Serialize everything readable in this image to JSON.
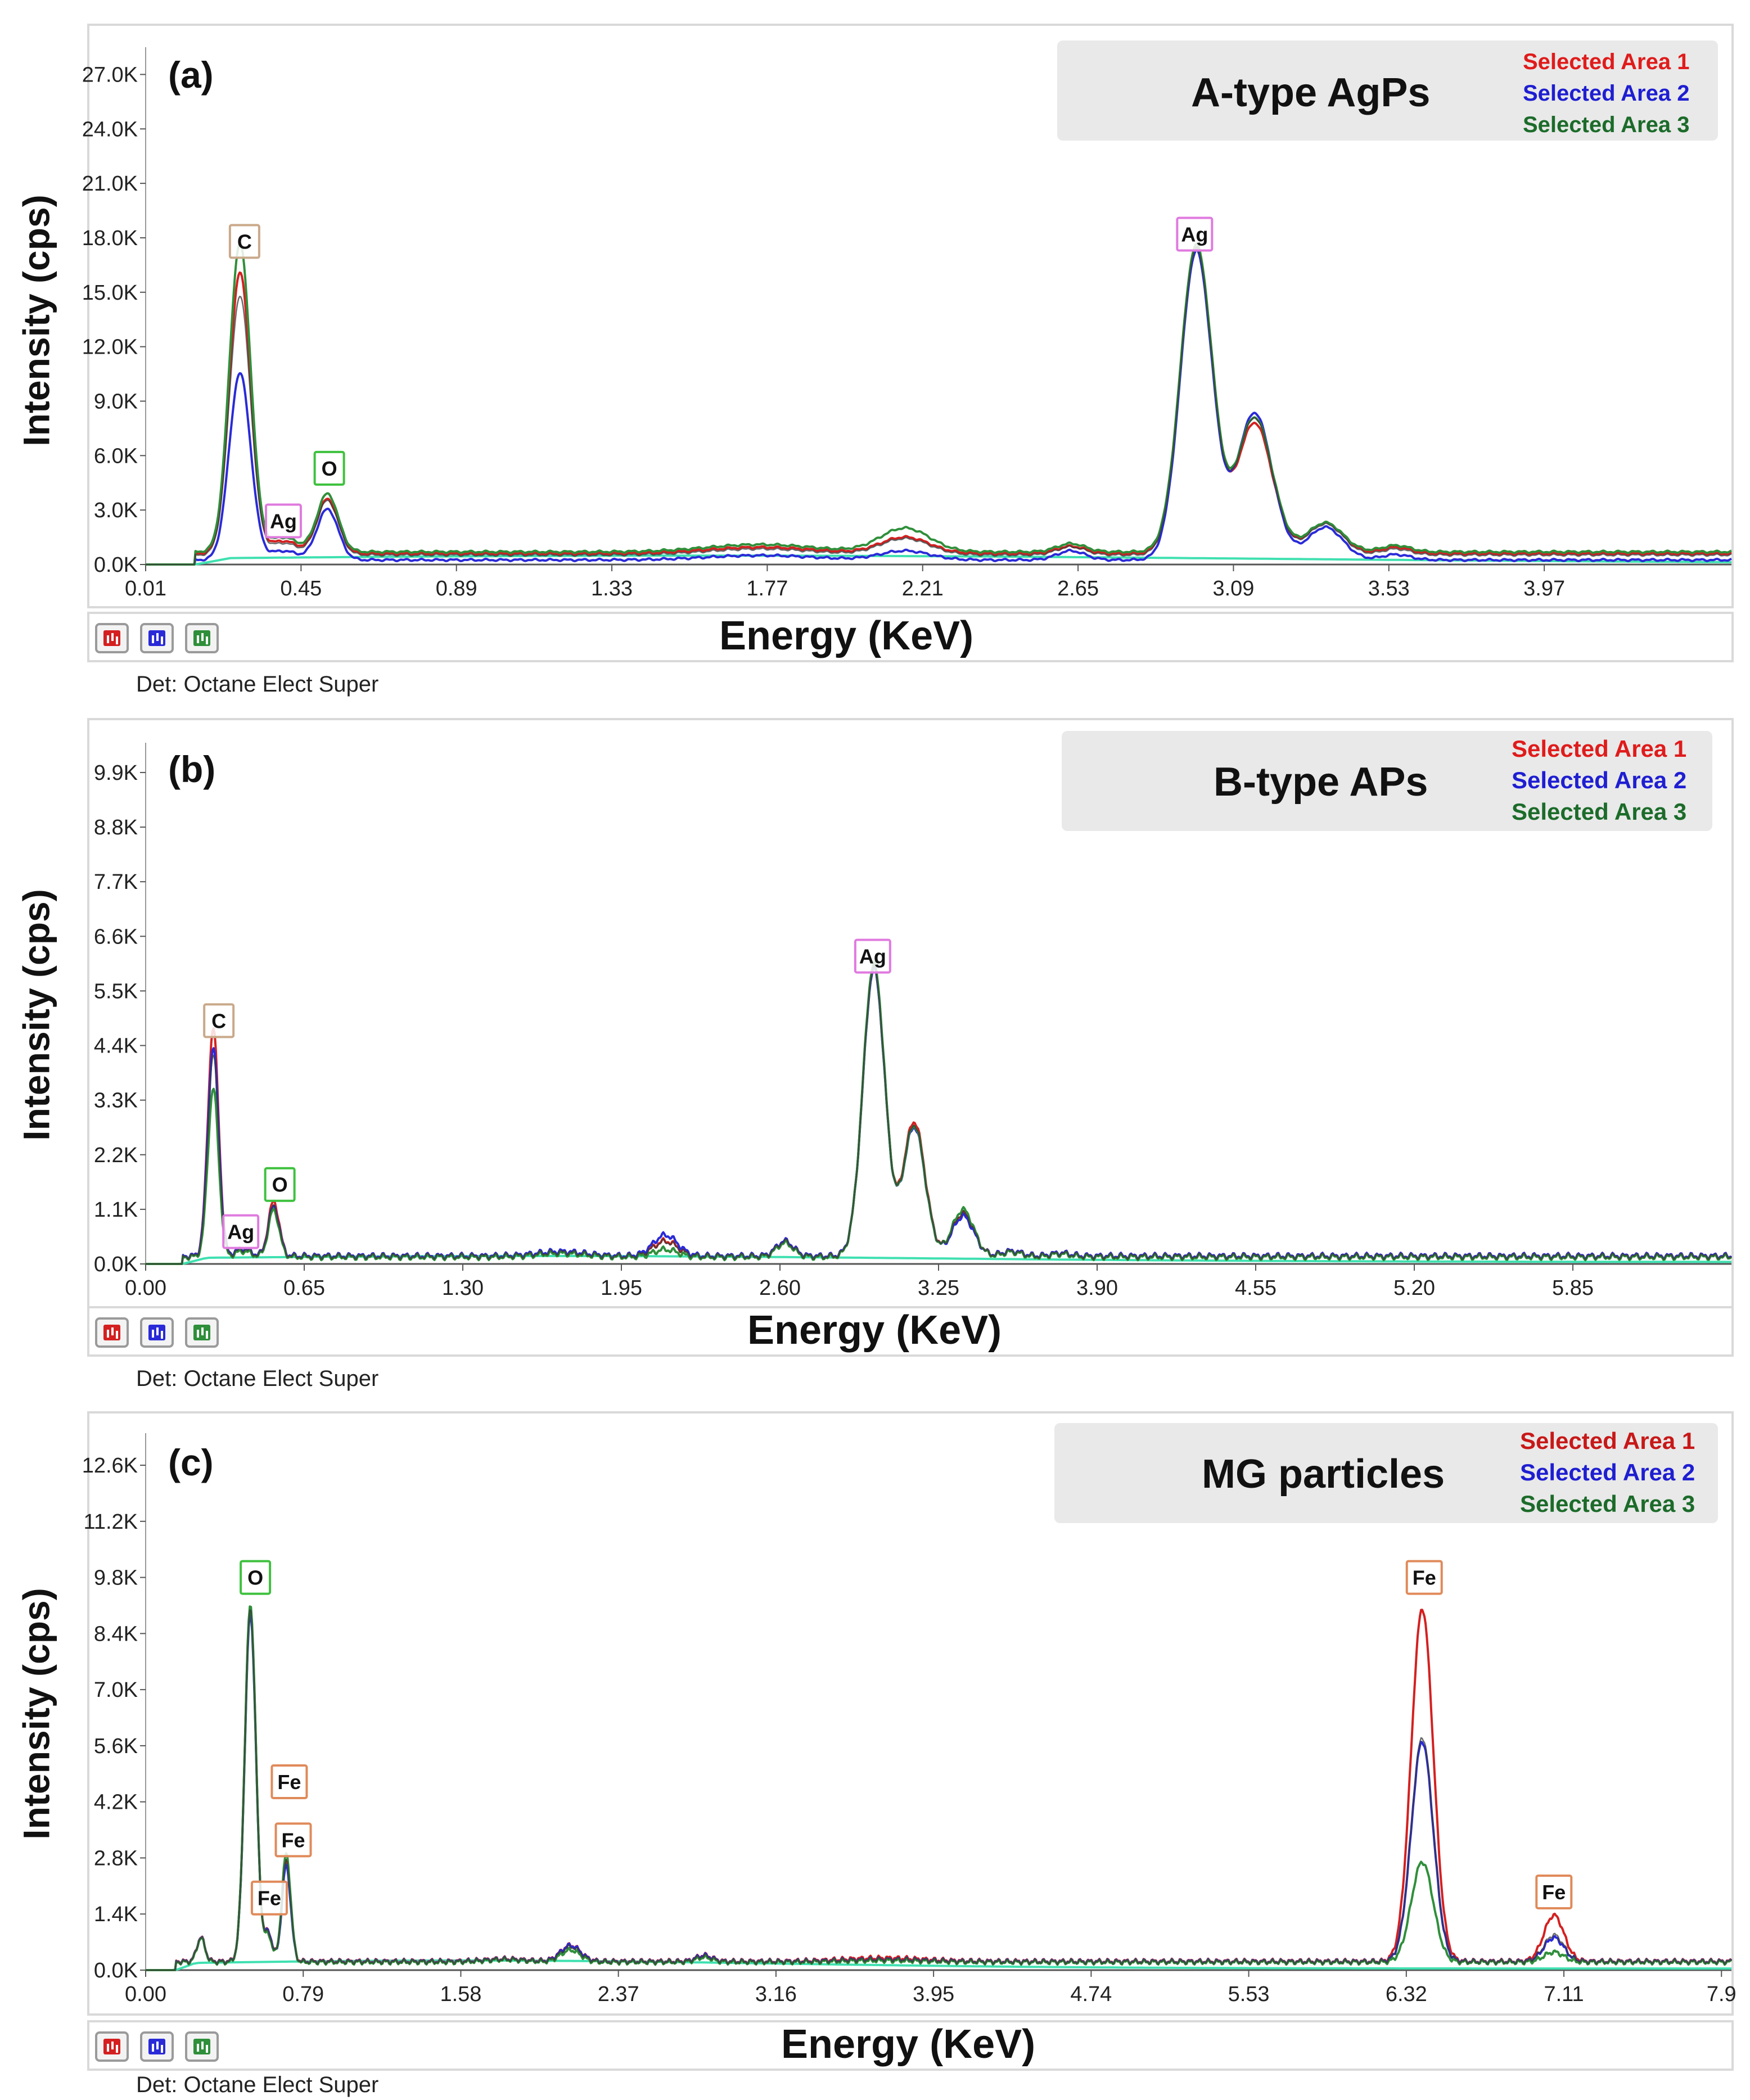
{
  "panels": [
    {
      "id": "a",
      "panel_label": "(a)",
      "legend_title": "A-type AgPs",
      "legend_entries": [
        "Selected Area 1",
        "Selected Area 2",
        "Selected Area 3"
      ],
      "xlabel": "Energy (KeV)",
      "ylabel": "Intensity (cps)",
      "detector": "Det: Octane Elect Super",
      "buttons": [
        "red-spectrum-button",
        "blue-spectrum-button",
        "green-spectrum-button"
      ]
    },
    {
      "id": "b",
      "panel_label": "(b)",
      "legend_title": "B-type APs",
      "legend_entries": [
        "Selected Area 1",
        "Selected Area 2",
        "Selected Area 3"
      ],
      "xlabel": "Energy (KeV)",
      "ylabel": "Intensity (cps)",
      "detector": "Det: Octane Elect Super",
      "buttons": [
        "red-spectrum-button",
        "blue-spectrum-button",
        "green-spectrum-button"
      ]
    },
    {
      "id": "c",
      "panel_label": "(c)",
      "legend_title": "MG particles",
      "legend_entries": [
        "Selected Area 1",
        "Selected Area 2",
        "Selected Area 3"
      ],
      "xlabel": "Energy (KeV)",
      "ylabel": "Intensity (cps)",
      "detector": "Det: Octane Elect Super",
      "buttons": [
        "red-spectrum-button",
        "blue-spectrum-button",
        "green-spectrum-button"
      ]
    }
  ],
  "colors": {
    "series": [
      "#e01b1b",
      "#1e1ed2",
      "#1c6b2a"
    ],
    "series_plot": [
      "#d42020",
      "#2a2ad8",
      "#2f8f3a"
    ],
    "background_trace": "#3fe0b0",
    "overlay_trace": "#3a3a3a",
    "peak_box": {
      "C": "#c9a98a",
      "O": "#3ec13e",
      "Ag": "#e07adf",
      "Fe": "#e08a5a"
    }
  },
  "chart_data": [
    {
      "type": "line",
      "title": "A-type AgPs",
      "xlabel": "Energy (KeV)",
      "ylabel": "Intensity (cps)",
      "xlim": [
        0.01,
        4.5
      ],
      "ylim": [
        0,
        28500
      ],
      "x_ticks": [
        "0.01",
        "0.45",
        "0.89",
        "1.33",
        "1.77",
        "2.21",
        "2.65",
        "3.09",
        "3.53",
        "3.97"
      ],
      "x_tick_values": [
        0.01,
        0.45,
        0.89,
        1.33,
        1.77,
        2.21,
        2.65,
        3.09,
        3.53,
        3.97
      ],
      "y_ticks": [
        "0.0K",
        "3.0K",
        "6.0K",
        "9.0K",
        "12.0K",
        "15.0K",
        "18.0K",
        "21.0K",
        "24.0K",
        "27.0K"
      ],
      "y_tick_values": [
        0,
        3000,
        6000,
        9000,
        12000,
        15000,
        18000,
        21000,
        24000,
        27000
      ],
      "peak_labels": [
        {
          "text": "C",
          "x": 0.29,
          "y": 17800,
          "kind": "C"
        },
        {
          "text": "Ag",
          "x": 0.4,
          "y": 2400,
          "kind": "Ag"
        },
        {
          "text": "O",
          "x": 0.53,
          "y": 5300,
          "kind": "O"
        },
        {
          "text": "Ag",
          "x": 2.98,
          "y": 18200,
          "kind": "Ag"
        }
      ],
      "baseline": 450,
      "series": [
        {
          "name": "Selected Area 1",
          "background": 600,
          "peaks": [
            [
              0.277,
              15500,
              0.03
            ],
            [
              0.4,
              700,
              0.04
            ],
            [
              0.525,
              3000,
              0.03
            ],
            [
              1.75,
              350,
              0.15
            ],
            [
              2.16,
              900,
              0.07
            ],
            [
              2.63,
              400,
              0.04
            ],
            [
              2.985,
              16800,
              0.045
            ],
            [
              3.15,
              7200,
              0.05
            ],
            [
              3.35,
              1700,
              0.05
            ],
            [
              3.55,
              350,
              0.04
            ]
          ]
        },
        {
          "name": "Selected Area 2",
          "background": 250,
          "peaks": [
            [
              0.277,
              10300,
              0.03
            ],
            [
              0.4,
              500,
              0.04
            ],
            [
              0.525,
              2800,
              0.03
            ],
            [
              1.75,
              250,
              0.15
            ],
            [
              2.16,
              500,
              0.07
            ],
            [
              2.63,
              500,
              0.04
            ],
            [
              2.985,
              17000,
              0.045
            ],
            [
              3.15,
              8100,
              0.05
            ],
            [
              3.35,
              1800,
              0.05
            ],
            [
              3.55,
              300,
              0.04
            ]
          ]
        },
        {
          "name": "Selected Area 3",
          "background": 700,
          "peaks": [
            [
              0.277,
              17000,
              0.03
            ],
            [
              0.4,
              800,
              0.04
            ],
            [
              0.525,
              3200,
              0.03
            ],
            [
              1.75,
              400,
              0.15
            ],
            [
              2.16,
              1300,
              0.07
            ],
            [
              2.63,
              450,
              0.04
            ],
            [
              2.985,
              16900,
              0.045
            ],
            [
              3.15,
              7400,
              0.05
            ],
            [
              3.35,
              1600,
              0.05
            ],
            [
              3.55,
              350,
              0.04
            ]
          ]
        }
      ]
    },
    {
      "type": "line",
      "title": "B-type APs",
      "xlabel": "Energy (KeV)",
      "ylabel": "Intensity (cps)",
      "xlim": [
        0.0,
        6.5
      ],
      "ylim": [
        0,
        10500
      ],
      "x_ticks": [
        "0.00",
        "0.65",
        "1.30",
        "1.95",
        "2.60",
        "3.25",
        "3.90",
        "4.55",
        "5.20",
        "5.85"
      ],
      "x_tick_values": [
        0.0,
        0.65,
        1.3,
        1.95,
        2.6,
        3.25,
        3.9,
        4.55,
        5.2,
        5.85
      ],
      "y_ticks": [
        "0.0K",
        "1.1K",
        "2.2K",
        "3.3K",
        "4.4K",
        "5.5K",
        "6.6K",
        "7.7K",
        "8.8K",
        "9.9K"
      ],
      "y_tick_values": [
        0,
        1100,
        2200,
        3300,
        4400,
        5500,
        6600,
        7700,
        8800,
        9900
      ],
      "peak_labels": [
        {
          "text": "C",
          "x": 0.3,
          "y": 4900,
          "kind": "C"
        },
        {
          "text": "Ag",
          "x": 0.39,
          "y": 650,
          "kind": "Ag"
        },
        {
          "text": "O",
          "x": 0.55,
          "y": 1600,
          "kind": "O"
        },
        {
          "text": "Ag",
          "x": 2.98,
          "y": 6200,
          "kind": "Ag"
        }
      ],
      "baseline": 120,
      "series": [
        {
          "name": "Selected Area 1",
          "background": 160,
          "peaks": [
            [
              0.277,
              4600,
              0.022
            ],
            [
              0.4,
              150,
              0.03
            ],
            [
              0.525,
              1100,
              0.022
            ],
            [
              1.7,
              80,
              0.1
            ],
            [
              2.13,
              300,
              0.05
            ],
            [
              2.62,
              300,
              0.035
            ],
            [
              2.985,
              5800,
              0.045
            ],
            [
              3.15,
              2700,
              0.045
            ],
            [
              3.35,
              850,
              0.045
            ],
            [
              3.55,
              100,
              0.04
            ],
            [
              3.75,
              60,
              0.04
            ]
          ]
        },
        {
          "name": "Selected Area 2",
          "background": 160,
          "peaks": [
            [
              0.277,
              4200,
              0.022
            ],
            [
              0.4,
              150,
              0.03
            ],
            [
              0.525,
              1000,
              0.022
            ],
            [
              1.7,
              90,
              0.1
            ],
            [
              2.13,
              420,
              0.05
            ],
            [
              2.62,
              300,
              0.035
            ],
            [
              2.985,
              5800,
              0.045
            ],
            [
              3.15,
              2600,
              0.045
            ],
            [
              3.35,
              800,
              0.045
            ],
            [
              3.55,
              100,
              0.04
            ],
            [
              3.75,
              60,
              0.04
            ]
          ]
        },
        {
          "name": "Selected Area 3",
          "background": 140,
          "peaks": [
            [
              0.277,
              3400,
              0.022
            ],
            [
              0.4,
              120,
              0.03
            ],
            [
              0.525,
              950,
              0.022
            ],
            [
              1.7,
              70,
              0.1
            ],
            [
              2.13,
              150,
              0.05
            ],
            [
              2.62,
              280,
              0.035
            ],
            [
              2.985,
              5900,
              0.045
            ],
            [
              3.15,
              2650,
              0.045
            ],
            [
              3.35,
              950,
              0.045
            ],
            [
              3.55,
              100,
              0.04
            ],
            [
              3.75,
              60,
              0.04
            ]
          ]
        }
      ]
    },
    {
      "type": "line",
      "title": "MG particles",
      "xlabel": "Energy (KeV)",
      "ylabel": "Intensity (cps)",
      "xlim": [
        0.0,
        7.95
      ],
      "ylim": [
        0,
        13400
      ],
      "x_ticks": [
        "0.00",
        "0.79",
        "1.58",
        "2.37",
        "3.16",
        "3.95",
        "4.74",
        "5.53",
        "6.32",
        "7.11",
        "7.9"
      ],
      "x_tick_values": [
        0.0,
        0.79,
        1.58,
        2.37,
        3.16,
        3.95,
        4.74,
        5.53,
        6.32,
        7.11,
        7.9
      ],
      "y_ticks": [
        "0.0K",
        "1.4K",
        "2.8K",
        "4.2K",
        "5.6K",
        "7.0K",
        "8.4K",
        "9.8K",
        "11.2K",
        "12.6K"
      ],
      "y_tick_values": [
        0,
        1400,
        2800,
        4200,
        5600,
        7000,
        8400,
        9800,
        11200,
        12600
      ],
      "peak_labels": [
        {
          "text": "O",
          "x": 0.55,
          "y": 9800,
          "kind": "O"
        },
        {
          "text": "Fe",
          "x": 0.72,
          "y": 4700,
          "kind": "Fe"
        },
        {
          "text": "Fe",
          "x": 0.74,
          "y": 3250,
          "kind": "Fe"
        },
        {
          "text": "Fe",
          "x": 0.62,
          "y": 1800,
          "kind": "Fe"
        },
        {
          "text": "Fe",
          "x": 6.41,
          "y": 9800,
          "kind": "Fe"
        },
        {
          "text": "Fe",
          "x": 7.06,
          "y": 1950,
          "kind": "Fe"
        }
      ],
      "baseline": 200,
      "series": [
        {
          "name": "Selected Area 1",
          "background": 220,
          "peaks": [
            [
              0.277,
              600,
              0.02
            ],
            [
              0.525,
              8800,
              0.028
            ],
            [
              0.615,
              700,
              0.02
            ],
            [
              0.705,
              2500,
              0.022
            ],
            [
              1.8,
              60,
              0.1
            ],
            [
              2.13,
              400,
              0.05
            ],
            [
              2.8,
              150,
              0.04
            ],
            [
              3.7,
              80,
              0.2
            ],
            [
              6.4,
              8800,
              0.055
            ],
            [
              7.06,
              1150,
              0.05
            ]
          ]
        },
        {
          "name": "Selected Area 2",
          "background": 210,
          "peaks": [
            [
              0.277,
              600,
              0.02
            ],
            [
              0.525,
              8700,
              0.028
            ],
            [
              0.615,
              700,
              0.02
            ],
            [
              0.705,
              2400,
              0.022
            ],
            [
              1.8,
              60,
              0.1
            ],
            [
              2.13,
              400,
              0.05
            ],
            [
              2.8,
              150,
              0.04
            ],
            [
              3.7,
              50,
              0.2
            ],
            [
              6.4,
              5500,
              0.055
            ],
            [
              7.06,
              600,
              0.05
            ]
          ]
        },
        {
          "name": "Selected Area 3",
          "background": 200,
          "peaks": [
            [
              0.277,
              600,
              0.02
            ],
            [
              0.525,
              8900,
              0.028
            ],
            [
              0.615,
              650,
              0.02
            ],
            [
              0.705,
              2700,
              0.022
            ],
            [
              1.8,
              60,
              0.1
            ],
            [
              2.13,
              300,
              0.05
            ],
            [
              2.8,
              120,
              0.04
            ],
            [
              3.7,
              40,
              0.2
            ],
            [
              6.4,
              2500,
              0.055
            ],
            [
              7.06,
              250,
              0.05
            ]
          ]
        }
      ]
    }
  ]
}
